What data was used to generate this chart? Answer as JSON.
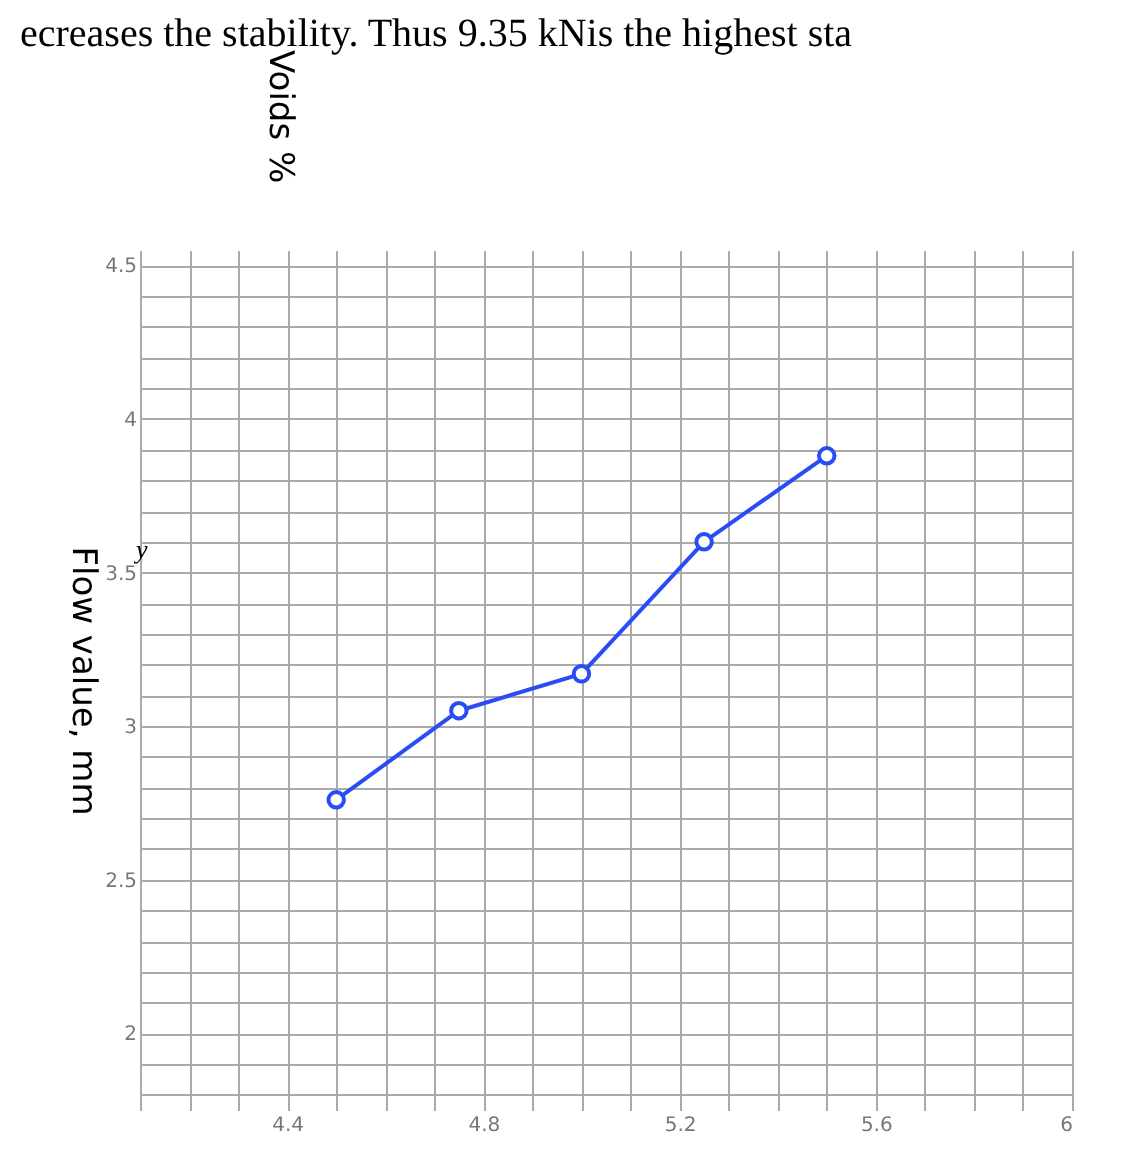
{
  "chart_data": {
    "type": "line",
    "ylabel": "Flow value, mm",
    "annotations": [
      "ecreases the stability. Thus 9.35 kNis the highest sta",
      "y",
      "Voids %"
    ],
    "x": [
      4.5,
      4.75,
      5.0,
      5.25,
      5.5
    ],
    "series": [
      {
        "color": "#2a4cf5",
        "values": [
          2.76,
          3.05,
          3.17,
          3.6,
          3.88
        ]
      }
    ],
    "xlim": [
      4.1,
      6.0
    ],
    "xticks": [
      {
        "value": 4.1,
        "label": null
      },
      {
        "value": 4.2,
        "label": null
      },
      {
        "value": 4.3,
        "label": null
      },
      4.4,
      {
        "value": 4.5,
        "label": null
      },
      {
        "value": 4.6,
        "label": null
      },
      {
        "value": 4.7,
        "label": null
      },
      4.8,
      {
        "value": 4.9,
        "label": null
      },
      {
        "value": 5.0,
        "label": null
      },
      {
        "value": 5.1,
        "label": null
      },
      5.2,
      {
        "value": 5.3,
        "label": null
      },
      {
        "value": 5.4,
        "label": null
      },
      {
        "value": 5.5,
        "label": null
      },
      5.6,
      {
        "value": 5.7,
        "label": null
      },
      {
        "value": 5.8,
        "label": null
      },
      {
        "value": 5.9,
        "label": null
      },
      6
    ],
    "ylim": [
      1.75,
      4.55
    ],
    "yticks": [
      {
        "value": 1.8,
        "label": null
      },
      {
        "value": 1.9,
        "label": null
      },
      2,
      {
        "value": 2.1,
        "label": null
      },
      {
        "value": 2.2,
        "label": null
      },
      {
        "value": 2.3,
        "label": null
      },
      {
        "value": 2.4,
        "label": null
      },
      2.5,
      {
        "value": 2.6,
        "label": null
      },
      {
        "value": 2.7,
        "label": null
      },
      {
        "value": 2.8,
        "label": null
      },
      {
        "value": 2.9,
        "label": null
      },
      3,
      {
        "value": 3.1,
        "label": null
      },
      {
        "value": 3.2,
        "label": null
      },
      {
        "value": 3.3,
        "label": null
      },
      {
        "value": 3.4,
        "label": null
      },
      3.5,
      {
        "value": 3.6,
        "label": null
      },
      {
        "value": 3.7,
        "label": null
      },
      {
        "value": 3.8,
        "label": null
      },
      {
        "value": 3.9,
        "label": null
      },
      4,
      {
        "value": 4.1,
        "label": null
      },
      {
        "value": 4.2,
        "label": null
      },
      {
        "value": 4.3,
        "label": null
      },
      {
        "value": 4.4,
        "label": null
      },
      4.5
    ],
    "grid": true,
    "marker": "circle",
    "line_style": "solid",
    "legend": false
  }
}
